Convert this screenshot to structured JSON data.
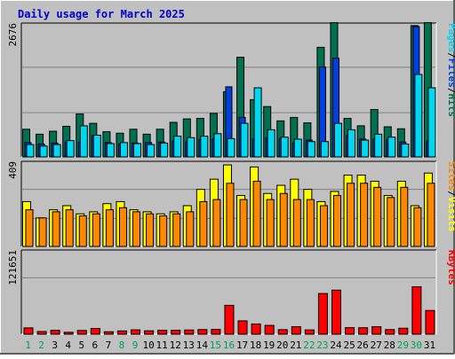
{
  "title": "Daily usage for March 2025",
  "colors": {
    "background": "#C0C0C0",
    "title": "#0000CC",
    "hits": "#007050",
    "files": "#0040E0",
    "pages": "#00D8F0",
    "visits": "#FFFF00",
    "sites": "#FF8800",
    "kbytes": "#FF0000",
    "weekend_day": "#00A050",
    "grid": "#808080"
  },
  "chart_data": [
    {
      "type": "bar",
      "panel": "hits-files-pages",
      "categories": [
        "1",
        "2",
        "3",
        "4",
        "5",
        "6",
        "7",
        "8",
        "9",
        "10",
        "11",
        "12",
        "13",
        "14",
        "15",
        "16",
        "17",
        "18",
        "19",
        "20",
        "21",
        "22",
        "23",
        "24",
        "25",
        "26",
        "27",
        "28",
        "29",
        "30",
        "31"
      ],
      "weekend_days": [
        "1",
        "2",
        "8",
        "9",
        "15",
        "16",
        "22",
        "23",
        "29",
        "30"
      ],
      "ymax_label": "2676",
      "ylim": [
        0,
        2676
      ],
      "grid": true,
      "legend_labels": [
        "Pages",
        "/",
        "Files",
        "/",
        "Hits"
      ],
      "series": [
        {
          "name": "Hits",
          "values": [
            560,
            460,
            520,
            620,
            870,
            680,
            510,
            480,
            560,
            460,
            560,
            700,
            770,
            780,
            880,
            1320,
            2020,
            1160,
            1020,
            730,
            800,
            690,
            2220,
            2720,
            780,
            630,
            960,
            610,
            570,
            2660,
            2720
          ]
        },
        {
          "name": "Files",
          "values": [
            290,
            260,
            280,
            300,
            300,
            430,
            290,
            260,
            280,
            290,
            300,
            320,
            310,
            350,
            360,
            1420,
            800,
            360,
            380,
            370,
            280,
            340,
            1820,
            2000,
            430,
            360,
            360,
            350,
            300,
            2640,
            320
          ]
        },
        {
          "name": "Pages",
          "values": [
            250,
            220,
            250,
            330,
            630,
            440,
            270,
            290,
            270,
            250,
            280,
            420,
            390,
            420,
            470,
            370,
            680,
            1400,
            550,
            400,
            360,
            310,
            310,
            680,
            550,
            340,
            460,
            400,
            260,
            1670,
            1400
          ]
        }
      ]
    },
    {
      "type": "bar",
      "panel": "visits-sites",
      "ymax_label": "409",
      "ylim": [
        0,
        409
      ],
      "grid": true,
      "legend_labels": [
        "Sites",
        "/",
        "Visits"
      ],
      "series": [
        {
          "name": "Visits",
          "values": [
            220,
            140,
            180,
            200,
            160,
            170,
            210,
            220,
            180,
            170,
            160,
            170,
            200,
            280,
            330,
            400,
            250,
            390,
            260,
            300,
            330,
            280,
            220,
            270,
            350,
            350,
            320,
            250,
            320,
            200,
            360
          ]
        },
        {
          "name": "Sites",
          "values": [
            180,
            140,
            170,
            180,
            150,
            160,
            180,
            190,
            170,
            160,
            150,
            160,
            170,
            220,
            230,
            310,
            230,
            320,
            230,
            260,
            230,
            230,
            200,
            250,
            310,
            310,
            290,
            240,
            290,
            190,
            310
          ]
        }
      ]
    },
    {
      "type": "bar",
      "panel": "kbytes",
      "ymax_label": "121651",
      "ylim": [
        0,
        121651
      ],
      "grid": true,
      "legend_labels": [
        "KBytes"
      ],
      "series": [
        {
          "name": "KBytes",
          "values": [
            9300,
            3900,
            5700,
            2800,
            5500,
            8500,
            3600,
            4800,
            6400,
            5000,
            5700,
            5800,
            6200,
            6800,
            7000,
            42600,
            19700,
            15100,
            13000,
            6700,
            11100,
            6300,
            60000,
            65000,
            9600,
            9500,
            11100,
            6800,
            8800,
            70000,
            35000
          ]
        }
      ]
    }
  ]
}
